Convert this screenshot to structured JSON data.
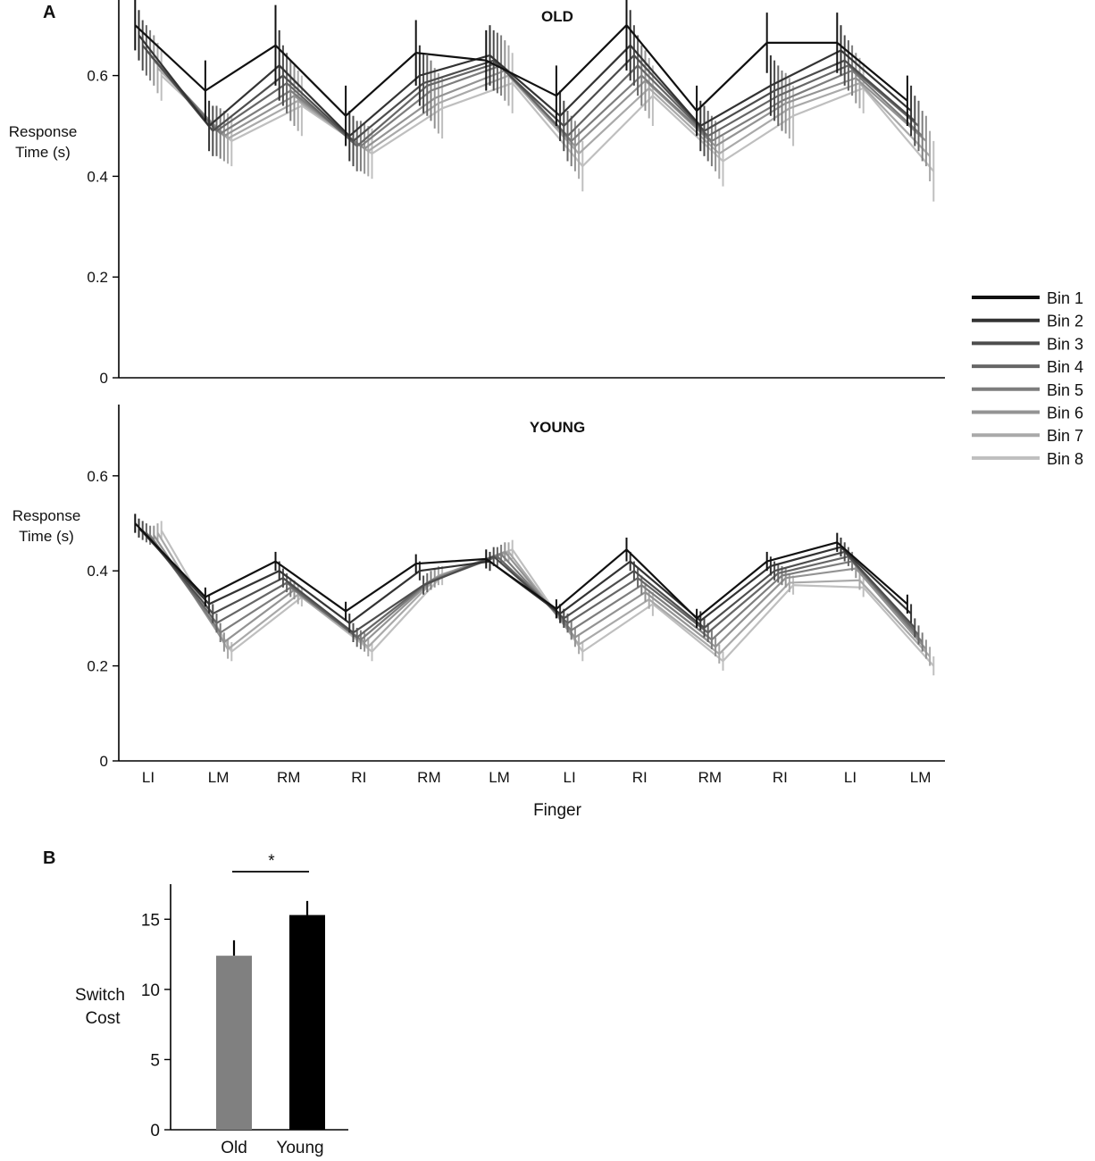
{
  "chart_data": [
    {
      "panel": "A",
      "type": "line",
      "title": "OLD",
      "ylabel_lines": [
        "Response",
        "Time (s)"
      ],
      "xlabel": "",
      "ylim": [
        0,
        0.75
      ],
      "yticks": [
        "0",
        "0.2",
        "0.4",
        "0.6"
      ],
      "yticks_values": [
        0,
        0.2,
        0.4,
        0.6
      ],
      "categories": [
        "LI",
        "LM",
        "RM",
        "RI",
        "RM",
        "LM",
        "LI",
        "RI",
        "RM",
        "RI",
        "LI",
        "LM"
      ],
      "series": [
        {
          "name": "Bin 1",
          "color": "#111111",
          "values": [
            0.7,
            0.57,
            0.66,
            0.52,
            0.645,
            0.63,
            0.56,
            0.7,
            0.53,
            0.665,
            0.665,
            0.55
          ],
          "err": [
            0.05,
            0.06,
            0.08,
            0.06,
            0.065,
            0.06,
            0.06,
            0.09,
            0.05,
            0.06,
            0.06,
            0.05
          ]
        },
        {
          "name": "Bin 2",
          "color": "#333333",
          "values": [
            0.68,
            0.5,
            0.62,
            0.48,
            0.6,
            0.64,
            0.52,
            0.66,
            0.5,
            0.58,
            0.65,
            0.53
          ],
          "err": [
            0.05,
            0.05,
            0.07,
            0.05,
            0.06,
            0.06,
            0.05,
            0.07,
            0.05,
            0.06,
            0.05,
            0.05
          ]
        },
        {
          "name": "Bin 3",
          "color": "#4d4d4d",
          "values": [
            0.66,
            0.49,
            0.6,
            0.47,
            0.585,
            0.63,
            0.5,
            0.64,
            0.49,
            0.57,
            0.63,
            0.51
          ],
          "err": [
            0.05,
            0.05,
            0.06,
            0.05,
            0.06,
            0.06,
            0.05,
            0.06,
            0.05,
            0.06,
            0.05,
            0.05
          ]
        },
        {
          "name": "Bin 4",
          "color": "#666666",
          "values": [
            0.65,
            0.49,
            0.585,
            0.46,
            0.58,
            0.625,
            0.48,
            0.62,
            0.48,
            0.56,
            0.62,
            0.5
          ],
          "err": [
            0.05,
            0.05,
            0.06,
            0.05,
            0.06,
            0.06,
            0.05,
            0.06,
            0.05,
            0.06,
            0.05,
            0.05
          ]
        },
        {
          "name": "Bin 5",
          "color": "#7d7d7d",
          "values": [
            0.64,
            0.485,
            0.57,
            0.46,
            0.57,
            0.62,
            0.47,
            0.6,
            0.47,
            0.55,
            0.61,
            0.48
          ],
          "err": [
            0.05,
            0.05,
            0.06,
            0.05,
            0.06,
            0.06,
            0.05,
            0.06,
            0.05,
            0.06,
            0.05,
            0.05
          ]
        },
        {
          "name": "Bin 6",
          "color": "#939393",
          "values": [
            0.63,
            0.48,
            0.56,
            0.455,
            0.555,
            0.61,
            0.46,
            0.59,
            0.46,
            0.545,
            0.595,
            0.47
          ],
          "err": [
            0.05,
            0.05,
            0.06,
            0.05,
            0.06,
            0.06,
            0.05,
            0.06,
            0.05,
            0.06,
            0.05,
            0.05
          ]
        },
        {
          "name": "Bin 7",
          "color": "#a9a9a9",
          "values": [
            0.615,
            0.475,
            0.55,
            0.45,
            0.545,
            0.6,
            0.445,
            0.575,
            0.445,
            0.535,
            0.585,
            0.44
          ],
          "err": [
            0.05,
            0.05,
            0.06,
            0.05,
            0.06,
            0.06,
            0.05,
            0.06,
            0.05,
            0.06,
            0.05,
            0.05
          ]
        },
        {
          "name": "Bin 8",
          "color": "#bfbfbf",
          "values": [
            0.6,
            0.47,
            0.54,
            0.445,
            0.535,
            0.585,
            0.42,
            0.56,
            0.43,
            0.52,
            0.575,
            0.41
          ],
          "err": [
            0.05,
            0.05,
            0.06,
            0.05,
            0.06,
            0.06,
            0.05,
            0.06,
            0.05,
            0.06,
            0.05,
            0.06
          ]
        }
      ],
      "legend": [
        "Bin 1",
        "Bin 2",
        "Bin 3",
        "Bin 4",
        "Bin 5",
        "Bin 6",
        "Bin 7",
        "Bin 8"
      ],
      "legend_position": "right"
    },
    {
      "panel": "",
      "type": "line",
      "title": "YOUNG",
      "ylabel_lines": [
        "Response",
        "Time (s)"
      ],
      "xlabel": "Finger",
      "ylim": [
        0,
        0.75
      ],
      "yticks": [
        "0",
        "0.2",
        "0.4",
        "0.6"
      ],
      "yticks_values": [
        0,
        0.2,
        0.4,
        0.6
      ],
      "categories": [
        "LI",
        "LM",
        "RM",
        "RI",
        "RM",
        "LM",
        "LI",
        "RI",
        "RM",
        "RI",
        "LI",
        "LM"
      ],
      "series": [
        {
          "name": "Bin 1",
          "color": "#111111",
          "values": [
            0.5,
            0.345,
            0.42,
            0.315,
            0.415,
            0.425,
            0.32,
            0.445,
            0.3,
            0.42,
            0.46,
            0.33
          ],
          "err": [
            0.02,
            0.02,
            0.02,
            0.02,
            0.02,
            0.02,
            0.02,
            0.025,
            0.02,
            0.02,
            0.02,
            0.02
          ]
        },
        {
          "name": "Bin 2",
          "color": "#333333",
          "values": [
            0.49,
            0.33,
            0.4,
            0.29,
            0.4,
            0.42,
            0.31,
            0.42,
            0.295,
            0.41,
            0.45,
            0.31
          ],
          "err": [
            0.02,
            0.02,
            0.02,
            0.02,
            0.02,
            0.02,
            0.02,
            0.02,
            0.02,
            0.02,
            0.02,
            0.02
          ]
        },
        {
          "name": "Bin 3",
          "color": "#4d4d4d",
          "values": [
            0.485,
            0.31,
            0.385,
            0.27,
            0.37,
            0.43,
            0.3,
            0.4,
            0.28,
            0.4,
            0.44,
            0.28
          ],
          "err": [
            0.02,
            0.02,
            0.02,
            0.02,
            0.02,
            0.02,
            0.02,
            0.02,
            0.02,
            0.02,
            0.02,
            0.02
          ]
        },
        {
          "name": "Bin 4",
          "color": "#666666",
          "values": [
            0.48,
            0.29,
            0.375,
            0.26,
            0.375,
            0.43,
            0.29,
            0.385,
            0.27,
            0.395,
            0.43,
            0.265
          ],
          "err": [
            0.02,
            0.02,
            0.02,
            0.02,
            0.02,
            0.02,
            0.02,
            0.02,
            0.02,
            0.02,
            0.02,
            0.02
          ]
        },
        {
          "name": "Bin 5",
          "color": "#7d7d7d",
          "values": [
            0.475,
            0.27,
            0.365,
            0.255,
            0.38,
            0.435,
            0.275,
            0.37,
            0.255,
            0.39,
            0.42,
            0.25
          ],
          "err": [
            0.02,
            0.02,
            0.02,
            0.02,
            0.02,
            0.02,
            0.02,
            0.02,
            0.02,
            0.02,
            0.02,
            0.02
          ]
        },
        {
          "name": "Bin 6",
          "color": "#939393",
          "values": [
            0.475,
            0.25,
            0.36,
            0.25,
            0.385,
            0.44,
            0.26,
            0.355,
            0.24,
            0.385,
            0.405,
            0.235
          ],
          "err": [
            0.02,
            0.02,
            0.02,
            0.02,
            0.02,
            0.02,
            0.02,
            0.02,
            0.02,
            0.02,
            0.02,
            0.02
          ]
        },
        {
          "name": "Bin 7",
          "color": "#a9a9a9",
          "values": [
            0.48,
            0.235,
            0.35,
            0.24,
            0.39,
            0.44,
            0.245,
            0.34,
            0.225,
            0.375,
            0.38,
            0.22
          ],
          "err": [
            0.02,
            0.02,
            0.02,
            0.02,
            0.02,
            0.02,
            0.02,
            0.02,
            0.02,
            0.02,
            0.02,
            0.02
          ]
        },
        {
          "name": "Bin 8",
          "color": "#bfbfbf",
          "values": [
            0.485,
            0.23,
            0.345,
            0.23,
            0.39,
            0.445,
            0.23,
            0.33,
            0.21,
            0.37,
            0.365,
            0.2
          ],
          "err": [
            0.02,
            0.02,
            0.02,
            0.02,
            0.02,
            0.02,
            0.02,
            0.025,
            0.02,
            0.02,
            0.02,
            0.02
          ]
        }
      ]
    },
    {
      "panel": "B",
      "type": "bar",
      "ylabel_lines": [
        "Switch",
        "Cost"
      ],
      "categories": [
        "Old",
        "Young"
      ],
      "values": [
        12.4,
        15.3
      ],
      "err": [
        1.1,
        1.0
      ],
      "colors": [
        "#808080",
        "#000000"
      ],
      "ylim": [
        0,
        17.5
      ],
      "yticks": [
        "0",
        "5",
        "10",
        "15"
      ],
      "yticks_values": [
        0,
        5,
        10,
        15
      ],
      "significance": "*"
    }
  ]
}
